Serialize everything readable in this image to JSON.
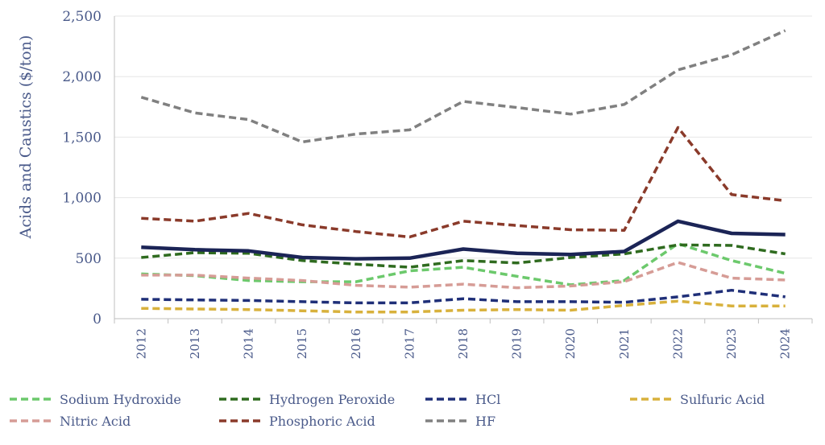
{
  "chart_data": {
    "type": "line",
    "title": "",
    "xlabel": "",
    "ylabel": "Acids and Caustics ($/ton)",
    "ylim": [
      0,
      2500
    ],
    "yticks": [
      0,
      500,
      1000,
      1500,
      2000,
      2500
    ],
    "ytick_labels": [
      "0",
      "500",
      "1,000",
      "1,500",
      "2,000",
      "2,500"
    ],
    "grid": "horizontal",
    "legend_position": "bottom",
    "categories": [
      "2012",
      "2013",
      "2014",
      "2015",
      "2016",
      "2017",
      "2018",
      "2019",
      "2020",
      "2021",
      "2022",
      "2023",
      "2024"
    ],
    "series": [
      {
        "name": "Sodium Hydroxide",
        "color": "#6cc96c",
        "dashed": true,
        "values": [
          370,
          355,
          315,
          305,
          305,
          395,
          425,
          350,
          280,
          315,
          620,
          480,
          375
        ]
      },
      {
        "name": "Hydrogen Peroxide",
        "color": "#2f6b1f",
        "dashed": true,
        "values": [
          505,
          545,
          540,
          480,
          450,
          425,
          480,
          460,
          505,
          535,
          610,
          605,
          535
        ]
      },
      {
        "name": "HCl",
        "color": "#1f2f78",
        "dashed": true,
        "values": [
          160,
          155,
          150,
          140,
          130,
          130,
          165,
          140,
          140,
          135,
          180,
          235,
          180
        ]
      },
      {
        "name": "Sulfuric Acid",
        "color": "#d8b13c",
        "dashed": true,
        "values": [
          85,
          80,
          75,
          65,
          55,
          55,
          70,
          75,
          70,
          110,
          145,
          105,
          105
        ]
      },
      {
        "name": "Nitric Acid",
        "color": "#d69c96",
        "dashed": true,
        "values": [
          360,
          360,
          335,
          315,
          275,
          260,
          285,
          255,
          270,
          305,
          465,
          335,
          320
        ]
      },
      {
        "name": "Phosphoric Acid",
        "color": "#8a3a2a",
        "dashed": true,
        "values": [
          830,
          805,
          870,
          775,
          720,
          675,
          805,
          770,
          735,
          730,
          1580,
          1025,
          975
        ]
      },
      {
        "name": "HF",
        "color": "#808080",
        "dashed": true,
        "values": [
          1830,
          1700,
          1645,
          1460,
          1525,
          1560,
          1795,
          1745,
          1690,
          1770,
          2055,
          2180,
          2380
        ]
      },
      {
        "name": "",
        "color": "#1b2456",
        "dashed": false,
        "values": [
          590,
          570,
          560,
          505,
          495,
          500,
          575,
          540,
          530,
          555,
          805,
          705,
          695
        ]
      }
    ]
  }
}
